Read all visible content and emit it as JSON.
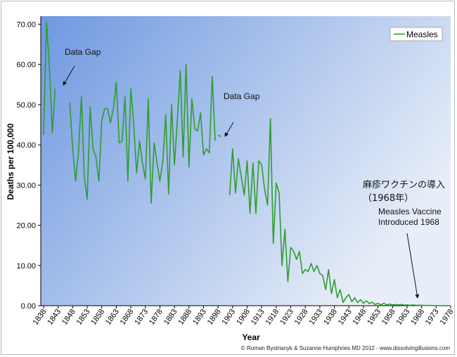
{
  "chart_data": {
    "type": "line",
    "title": "",
    "xlabel": "Year",
    "ylabel": "Deaths per 100,000",
    "xlim": [
      1838,
      1978
    ],
    "ylim": [
      0,
      72
    ],
    "grid": false,
    "legend_position": "top-right",
    "y_ticks": [
      "0.00",
      "10.00",
      "20.00",
      "30.00",
      "40.00",
      "50.00",
      "60.00",
      "70.00"
    ],
    "x_ticks": [
      "1838",
      "1843",
      "1848",
      "1853",
      "1858",
      "1863",
      "1868",
      "1873",
      "1878",
      "1883",
      "1888",
      "1893",
      "1898",
      "1903",
      "1908",
      "1913",
      "1918",
      "1923",
      "1928",
      "1933",
      "1938",
      "1943",
      "1948",
      "1953",
      "1958",
      "1963",
      "1968",
      "1973",
      "1978"
    ],
    "series": [
      {
        "name": "Measles",
        "color": "#2e9e2e",
        "segments": [
          {
            "x": [
              1838,
              1839,
              1840,
              1841,
              1842
            ],
            "y": [
              42.5,
              70.5,
              59.5,
              43.0,
              54.0
            ]
          },
          {
            "x": [
              1847,
              1848,
              1849,
              1850,
              1851,
              1852,
              1853,
              1854,
              1855,
              1856,
              1857,
              1858,
              1859,
              1860,
              1861,
              1862,
              1863,
              1864,
              1865,
              1866,
              1867,
              1868,
              1869,
              1870,
              1871,
              1872,
              1873,
              1874,
              1875,
              1876,
              1877,
              1878,
              1879,
              1880,
              1881,
              1882,
              1883,
              1884,
              1885,
              1886,
              1887,
              1888,
              1889,
              1890,
              1891,
              1892,
              1893,
              1894,
              1895,
              1896,
              1897
            ],
            "y": [
              50.5,
              39.0,
              31.0,
              38.0,
              52.0,
              32.0,
              26.5,
              49.5,
              39.0,
              37.0,
              31.0,
              46.0,
              49.0,
              49.0,
              45.5,
              49.0,
              55.5,
              40.5,
              41.0,
              52.0,
              31.0,
              54.0,
              45.0,
              33.0,
              41.0,
              35.5,
              31.5,
              51.5,
              25.5,
              40.5,
              35.5,
              31.0,
              36.0,
              47.5,
              27.8,
              50.0,
              35.0,
              46.0,
              58.5,
              37.0,
              60.0,
              34.5,
              51.5,
              44.0,
              43.5,
              48.0,
              37.5,
              39.0,
              38.0,
              57.0,
              41.0
            ]
          },
          {
            "x": [
              1898,
              1899
            ],
            "y": [
              42.5,
              42.0
            ]
          },
          {
            "x": [
              1902,
              1903,
              1904,
              1905,
              1906,
              1907,
              1908,
              1909,
              1910,
              1911,
              1912,
              1913,
              1914,
              1915,
              1916,
              1917,
              1918,
              1919,
              1920,
              1921,
              1922,
              1923,
              1924,
              1925,
              1926,
              1927,
              1928,
              1929,
              1930,
              1931,
              1932,
              1933,
              1934,
              1935,
              1936,
              1937,
              1938,
              1939,
              1940,
              1941,
              1942,
              1943,
              1944,
              1945,
              1946,
              1947,
              1948,
              1949,
              1950,
              1951,
              1952,
              1953,
              1954,
              1955,
              1956,
              1957,
              1958,
              1959,
              1960,
              1961,
              1962,
              1963,
              1964,
              1965,
              1966,
              1967,
              1968,
              1969,
              1970,
              1971,
              1972,
              1973,
              1974,
              1975,
              1976,
              1977,
              1978
            ],
            "y": [
              27.5,
              39.0,
              28.0,
              36.5,
              32.0,
              27.5,
              36.0,
              23.0,
              35.5,
              23.0,
              36.0,
              35.0,
              29.0,
              25.0,
              46.5,
              15.5,
              30.5,
              28.0,
              10.0,
              19.0,
              6.0,
              14.5,
              13.5,
              11.5,
              13.5,
              8.0,
              9.0,
              8.5,
              10.5,
              8.5,
              10.0,
              8.0,
              7.5,
              4.0,
              9.0,
              3.0,
              6.5,
              2.0,
              4.0,
              0.8,
              2.0,
              2.8,
              1.0,
              2.0,
              0.8,
              1.5,
              0.6,
              1.2,
              0.5,
              0.9,
              0.3,
              0.6,
              0.2,
              0.6,
              0.2,
              0.4,
              0.2,
              0.3,
              0.2,
              0.3,
              0.15,
              0.2,
              0.1,
              0.2,
              0.1,
              0.1,
              0.1,
              0.05,
              0.05,
              0.05,
              0.03,
              0.03,
              0.02,
              0.02,
              0.02,
              0.01,
              0.01
            ]
          }
        ]
      }
    ],
    "annotations": {
      "data_gap_1": "Data Gap",
      "data_gap_2": "Data Gap",
      "jp_line1": "麻疹ワクチンの導入",
      "jp_line2": "（1968年）",
      "vaccine_line1": "Measles Vaccine",
      "vaccine_line2": "Introduced 1968"
    },
    "credit": "© Roman Bystrianyk & Suzanne Humphries MD 2012 - www.dissolvingillusions.com",
    "colors": {
      "plot_bg_start": "#6e98e0",
      "plot_bg_end": "#e8eef8",
      "line": "#2e9e2e"
    }
  }
}
